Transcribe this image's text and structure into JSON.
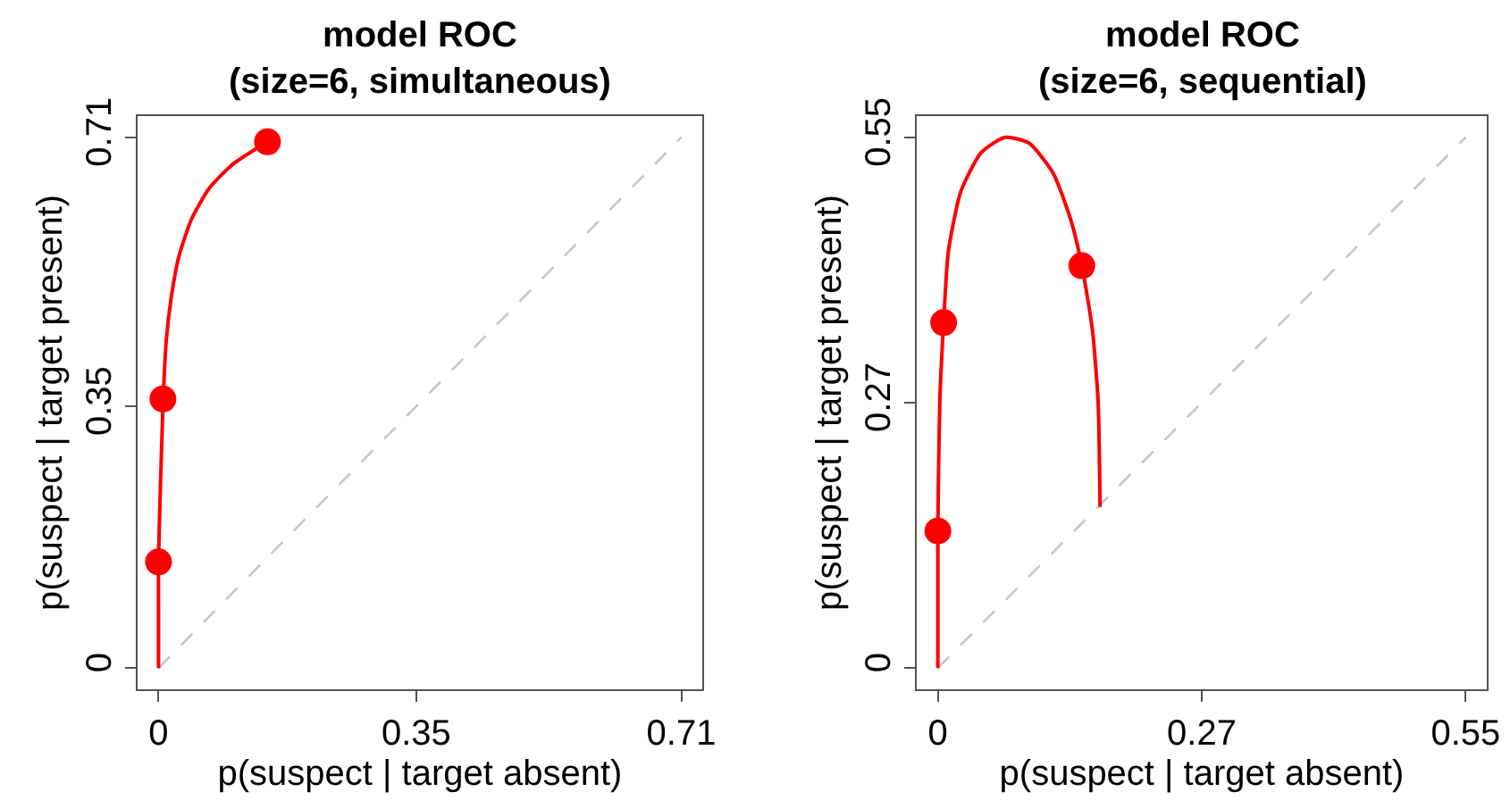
{
  "chart_data": [
    {
      "type": "line",
      "title": "model ROC\n(size=6, simultaneous)",
      "xlabel": "p(suspect | target absent)",
      "ylabel": "p(suspect | target present)",
      "xlim": [
        -0.0284,
        0.7384
      ],
      "ylim": [
        -0.0284,
        0.7384
      ],
      "xticks": [
        0,
        0.35,
        0.71
      ],
      "yticks": [
        0,
        0.35,
        0.71
      ],
      "series": [
        {
          "color": "#ff0000",
          "marker": "none",
          "line_style": "solid",
          "x": [
            0,
            0,
            0,
            0.0024,
            0.0064,
            0.0104,
            0.0169,
            0.0273,
            0.045,
            0.069,
            0.101,
            0.148
          ],
          "values": [
            0,
            0.075,
            0.142,
            0.236,
            0.36,
            0.437,
            0.493,
            0.549,
            0.601,
            0.642,
            0.674,
            0.704
          ]
        },
        {
          "type": "scatter",
          "color": "#ff0000",
          "marker": "circle",
          "x": [
            0,
            0.006,
            0.148
          ],
          "values": [
            0.142,
            0.36,
            0.704
          ]
        },
        {
          "color": "#c8c8c8",
          "marker": "none",
          "line_style": "dashed",
          "x": [
            0,
            0.71
          ],
          "values": [
            0,
            0.71
          ]
        }
      ]
    },
    {
      "type": "line",
      "title": "model ROC\n(size=6, sequential)",
      "xlabel": "p(suspect | target absent)",
      "ylabel": "p(suspect | target present)",
      "xlim": [
        -0.022,
        0.572
      ],
      "ylim": [
        -0.022,
        0.572
      ],
      "xticks": [
        0,
        {
          "value": 0.275,
          "label": "0.27"
        },
        0.55
      ],
      "yticks": [
        0,
        {
          "value": 0.275,
          "label": "0.27"
        },
        0.55
      ],
      "series": [
        {
          "color": "#ff0000",
          "marker": "none",
          "line_style": "solid",
          "x": [
            0,
            0,
            0.002,
            0.006,
            0.011,
            0.024,
            0.045,
            0.07,
            0.095,
            0.12,
            0.139,
            0.15,
            0.161,
            0.167,
            0.169
          ],
          "values": [
            0,
            0.142,
            0.276,
            0.358,
            0.432,
            0.494,
            0.534,
            0.55,
            0.544,
            0.513,
            0.463,
            0.417,
            0.351,
            0.276,
            0.167
          ]
        },
        {
          "type": "scatter",
          "color": "#ff0000",
          "marker": "circle",
          "x": [
            0,
            0.006,
            0.15
          ],
          "values": [
            0.142,
            0.358,
            0.417
          ]
        },
        {
          "color": "#c8c8c8",
          "marker": "none",
          "line_style": "dashed",
          "x": [
            0,
            0.55
          ],
          "values": [
            0,
            0.55
          ]
        }
      ]
    }
  ]
}
